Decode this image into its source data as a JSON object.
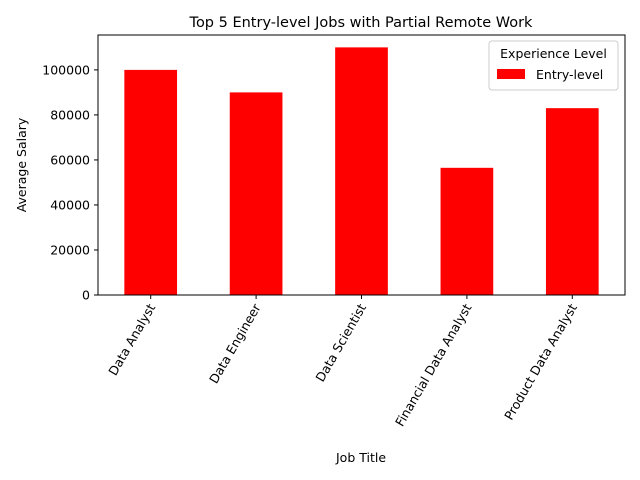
{
  "chart_data": {
    "type": "bar",
    "title": "Top 5 Entry-level Jobs with Partial Remote Work",
    "xlabel": "Job Title",
    "ylabel": "Average Salary",
    "categories": [
      "Data Analyst",
      "Data Engineer",
      "Data Scientist",
      "Financial Data Analyst",
      "Product Data Analyst"
    ],
    "series": [
      {
        "name": "Entry-level",
        "values": [
          100000,
          90000,
          110000,
          56500,
          83000
        ],
        "color": "#ff0000"
      }
    ],
    "ylim": [
      0,
      115500
    ],
    "yticks": [
      0,
      20000,
      40000,
      60000,
      80000,
      100000
    ],
    "legend": {
      "title": "Experience Level",
      "placement": "top-right"
    },
    "grid": false
  }
}
